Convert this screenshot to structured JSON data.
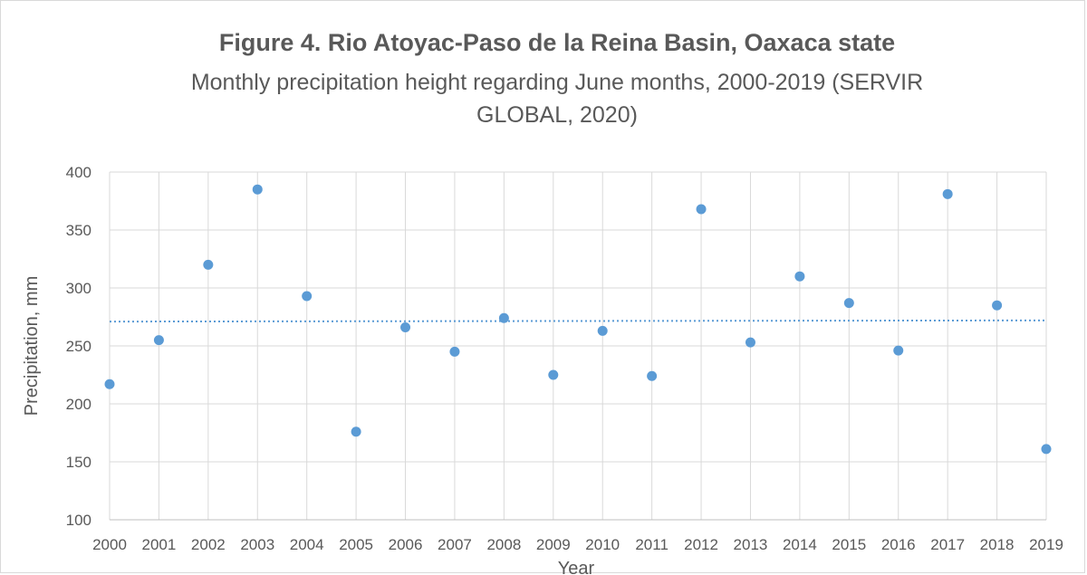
{
  "chart_data": {
    "type": "scatter",
    "title": "Figure 4.  Rio Atoyac-Paso de la Reina Basin, Oaxaca state",
    "subtitle": "Monthly precipitation height regarding June months, 2000-2019  (SERVIR GLOBAL, 2020)",
    "xlabel": "Year",
    "ylabel": "Precipitation, mm",
    "x": [
      2000,
      2001,
      2002,
      2003,
      2004,
      2005,
      2006,
      2007,
      2008,
      2009,
      2010,
      2011,
      2012,
      2013,
      2014,
      2015,
      2016,
      2017,
      2018,
      2019
    ],
    "x_tick_labels": [
      "2000",
      "2001",
      "2002",
      "2003",
      "2004",
      "2005",
      "2006",
      "2007",
      "2008",
      "2009",
      "2010",
      "2011",
      "2012",
      "2013",
      "2014",
      "2015",
      "2016",
      "2017",
      "2018",
      "2019"
    ],
    "series": [
      {
        "values": [
          217,
          255,
          320,
          385,
          293,
          176,
          266,
          245,
          274,
          225,
          263,
          224,
          368,
          253,
          310,
          287,
          246,
          381,
          285,
          161
        ],
        "color": "#5b9bd5"
      }
    ],
    "trendline": {
      "type": "linear",
      "style": "dotted",
      "color": "#5b9bd5",
      "start": 271,
      "end": 272
    },
    "ylim": [
      100,
      400
    ],
    "yticks": [
      100,
      150,
      200,
      250,
      300,
      350,
      400
    ],
    "grid": true,
    "legend": "none"
  }
}
